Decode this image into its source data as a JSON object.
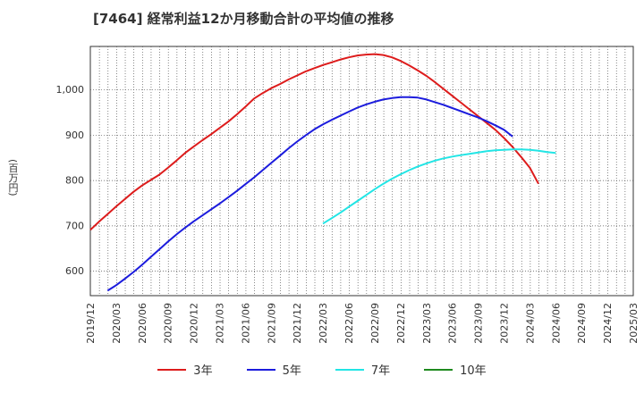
{
  "chart_data": {
    "type": "line",
    "title": "[7464]  経常利益12か月移動合計の平均値の推移",
    "ylabel": "(百万円)",
    "xlabel": "",
    "ylim": [
      545,
      1095
    ],
    "yticks": [
      600,
      700,
      800,
      900,
      1000
    ],
    "ytick_labels": [
      "600",
      "700",
      "800",
      "900",
      "1,000"
    ],
    "x_ticks": [
      "2019/12",
      "2020/03",
      "2020/06",
      "2020/09",
      "2020/12",
      "2021/03",
      "2021/06",
      "2021/09",
      "2021/12",
      "2022/03",
      "2022/06",
      "2022/09",
      "2022/12",
      "2023/03",
      "2023/06",
      "2023/09",
      "2023/12",
      "2024/03",
      "2024/06",
      "2024/09",
      "2024/12",
      "2025/03"
    ],
    "grid": true,
    "legend_position": "bottom",
    "series": [
      {
        "name": "3年",
        "color": "#dd1c1c",
        "start_index": 0,
        "values": [
          690,
          708,
          725,
          742,
          758,
          774,
          788,
          800,
          812,
          827,
          843,
          860,
          874,
          888,
          901,
          915,
          929,
          945,
          962,
          980,
          992,
          1003,
          1012,
          1022,
          1031,
          1040,
          1047,
          1054,
          1060,
          1066,
          1071,
          1075,
          1077,
          1078,
          1076,
          1071,
          1063,
          1053,
          1042,
          1030,
          1016,
          1001,
          986,
          971,
          956,
          941,
          926,
          911,
          893,
          873,
          851,
          827,
          792
        ]
      },
      {
        "name": "5年",
        "color": "#1c1cdd",
        "start_index": 2,
        "values": [
          556,
          568,
          582,
          597,
          613,
          630,
          647,
          664,
          680,
          695,
          709,
          722,
          735,
          748,
          762,
          776,
          791,
          806,
          822,
          838,
          854,
          870,
          885,
          899,
          912,
          923,
          933,
          942,
          951,
          960,
          967,
          973,
          978,
          981,
          983,
          983,
          982,
          978,
          972,
          966,
          959,
          952,
          945,
          938,
          930,
          921,
          911,
          896
        ]
      },
      {
        "name": "7年",
        "color": "#22e5e5",
        "start_index": 27,
        "values": [
          704,
          716,
          728,
          741,
          754,
          767,
          780,
          792,
          803,
          813,
          822,
          830,
          837,
          843,
          848,
          852,
          855,
          858,
          861,
          864,
          866,
          867,
          868,
          868,
          867,
          865,
          862,
          860
        ]
      },
      {
        "name": "10年",
        "color": "#1e8a1e",
        "start_index": 0,
        "values": []
      }
    ]
  }
}
